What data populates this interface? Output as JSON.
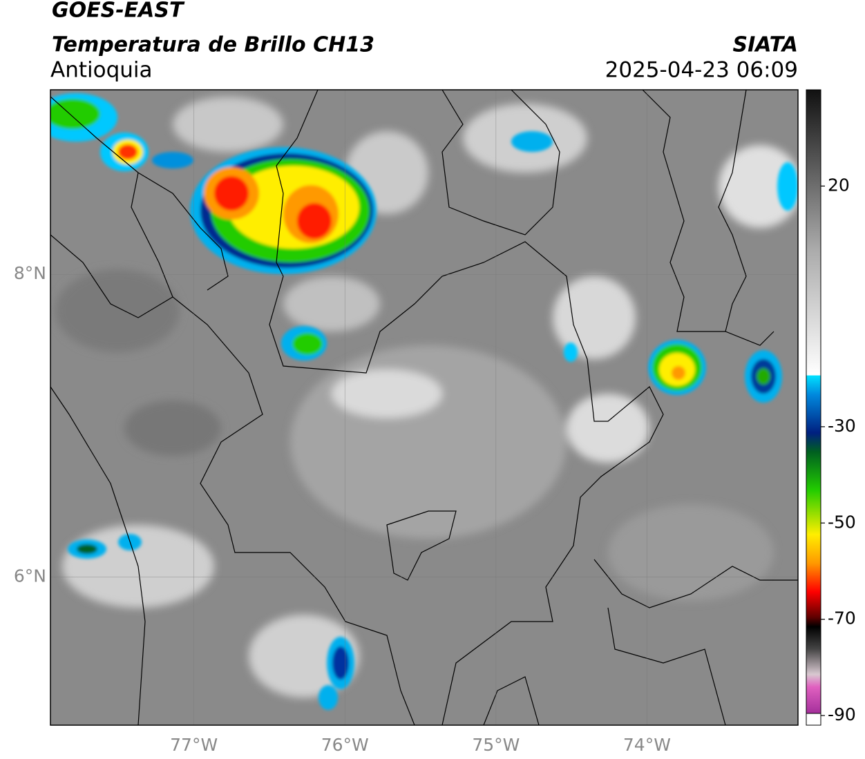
{
  "header": {
    "title": "GOES-EAST",
    "subtitle": "Temperatura de Brillo CH13",
    "region": "Antioquia",
    "source": "SIATA",
    "datetime": "2025-04-23 06:09"
  },
  "map": {
    "xlim": [
      -77.95,
      -73
    ],
    "ylim": [
      5.02,
      9.22
    ],
    "xticks": [
      {
        "value": -77,
        "label": "77°W"
      },
      {
        "value": -76,
        "label": "76°W"
      },
      {
        "value": -75,
        "label": "75°W"
      },
      {
        "value": -74,
        "label": "74°W"
      }
    ],
    "yticks": [
      {
        "value": 6,
        "label": "6°N"
      },
      {
        "value": 8,
        "label": "8°N"
      }
    ]
  },
  "colorbar": {
    "lim": [
      -92,
      40
    ],
    "ticks": [
      20,
      -30,
      -50,
      -70,
      -90
    ]
  }
}
